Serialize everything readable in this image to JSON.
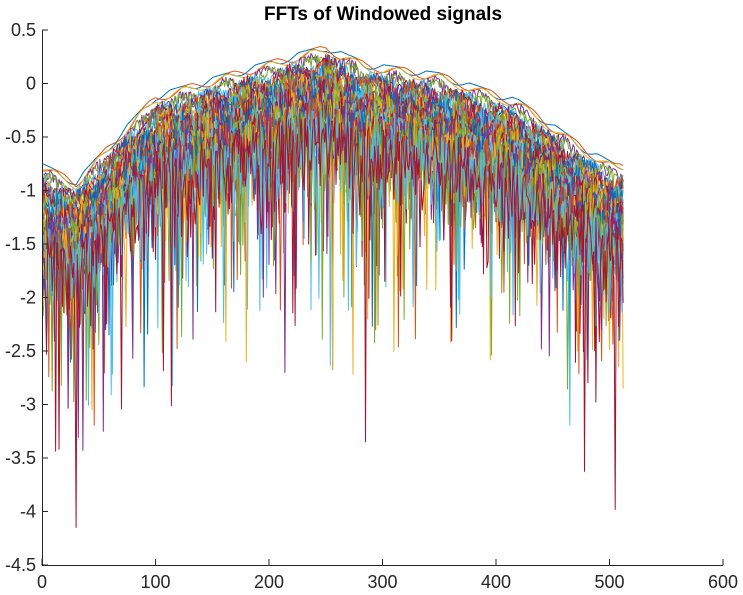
{
  "chart_data": {
    "type": "line",
    "title": "FFTs of Windowed signals",
    "xlabel": "",
    "ylabel": "",
    "xlim": [
      0,
      600
    ],
    "ylim": [
      -4.5,
      0.5
    ],
    "x_ticks": [
      0,
      100,
      200,
      300,
      400,
      500,
      600
    ],
    "x_tick_labels": [
      "0",
      "100",
      "200",
      "300",
      "400",
      "500",
      "600"
    ],
    "y_ticks": [
      0.5,
      0,
      -0.5,
      -1,
      -1.5,
      -2,
      -2.5,
      -3,
      -3.5,
      -4,
      -4.5
    ],
    "y_tick_labels": [
      "0.5",
      "0",
      "-0.5",
      "-1",
      "-1.5",
      "-2",
      "-2.5",
      "-3",
      "-3.5",
      "-4",
      "-4.5"
    ],
    "grid": false,
    "legend": "none",
    "box": "left-bottom",
    "colors": [
      "#0072BD",
      "#D95319",
      "#EDB120",
      "#7E2F8E",
      "#77AC30",
      "#4DBEEE",
      "#A2142F"
    ],
    "series_count": 35,
    "points_per_series": 512,
    "x_start": 1,
    "x_end": 512,
    "series_envelope": [
      {
        "x": 1,
        "ymax": -0.75,
        "ymin": -3.0
      },
      {
        "x": 30,
        "ymax": -0.9,
        "ymin": -4.15
      },
      {
        "x": 100,
        "ymax": -0.1,
        "ymin": -3.1
      },
      {
        "x": 180,
        "ymax": 0.15,
        "ymin": -2.6
      },
      {
        "x": 250,
        "ymax": 0.36,
        "ymin": -2.9
      },
      {
        "x": 285,
        "ymax": 0.2,
        "ymin": -3.35
      },
      {
        "x": 350,
        "ymax": 0.1,
        "ymin": -2.8
      },
      {
        "x": 420,
        "ymax": -0.15,
        "ymin": -2.9
      },
      {
        "x": 480,
        "ymax": -0.6,
        "ymin": -3.65
      },
      {
        "x": 505,
        "ymax": -0.75,
        "ymin": -3.98
      },
      {
        "x": 512,
        "ymax": -0.75,
        "ymin": -2.85
      }
    ],
    "notable_minima": [
      {
        "x": 30,
        "y": -4.15
      },
      {
        "x": 12,
        "y": -3.65
      },
      {
        "x": 114,
        "y": -3.05
      },
      {
        "x": 285,
        "y": -3.35
      },
      {
        "x": 478,
        "y": -3.65
      },
      {
        "x": 505,
        "y": -3.98
      }
    ]
  }
}
